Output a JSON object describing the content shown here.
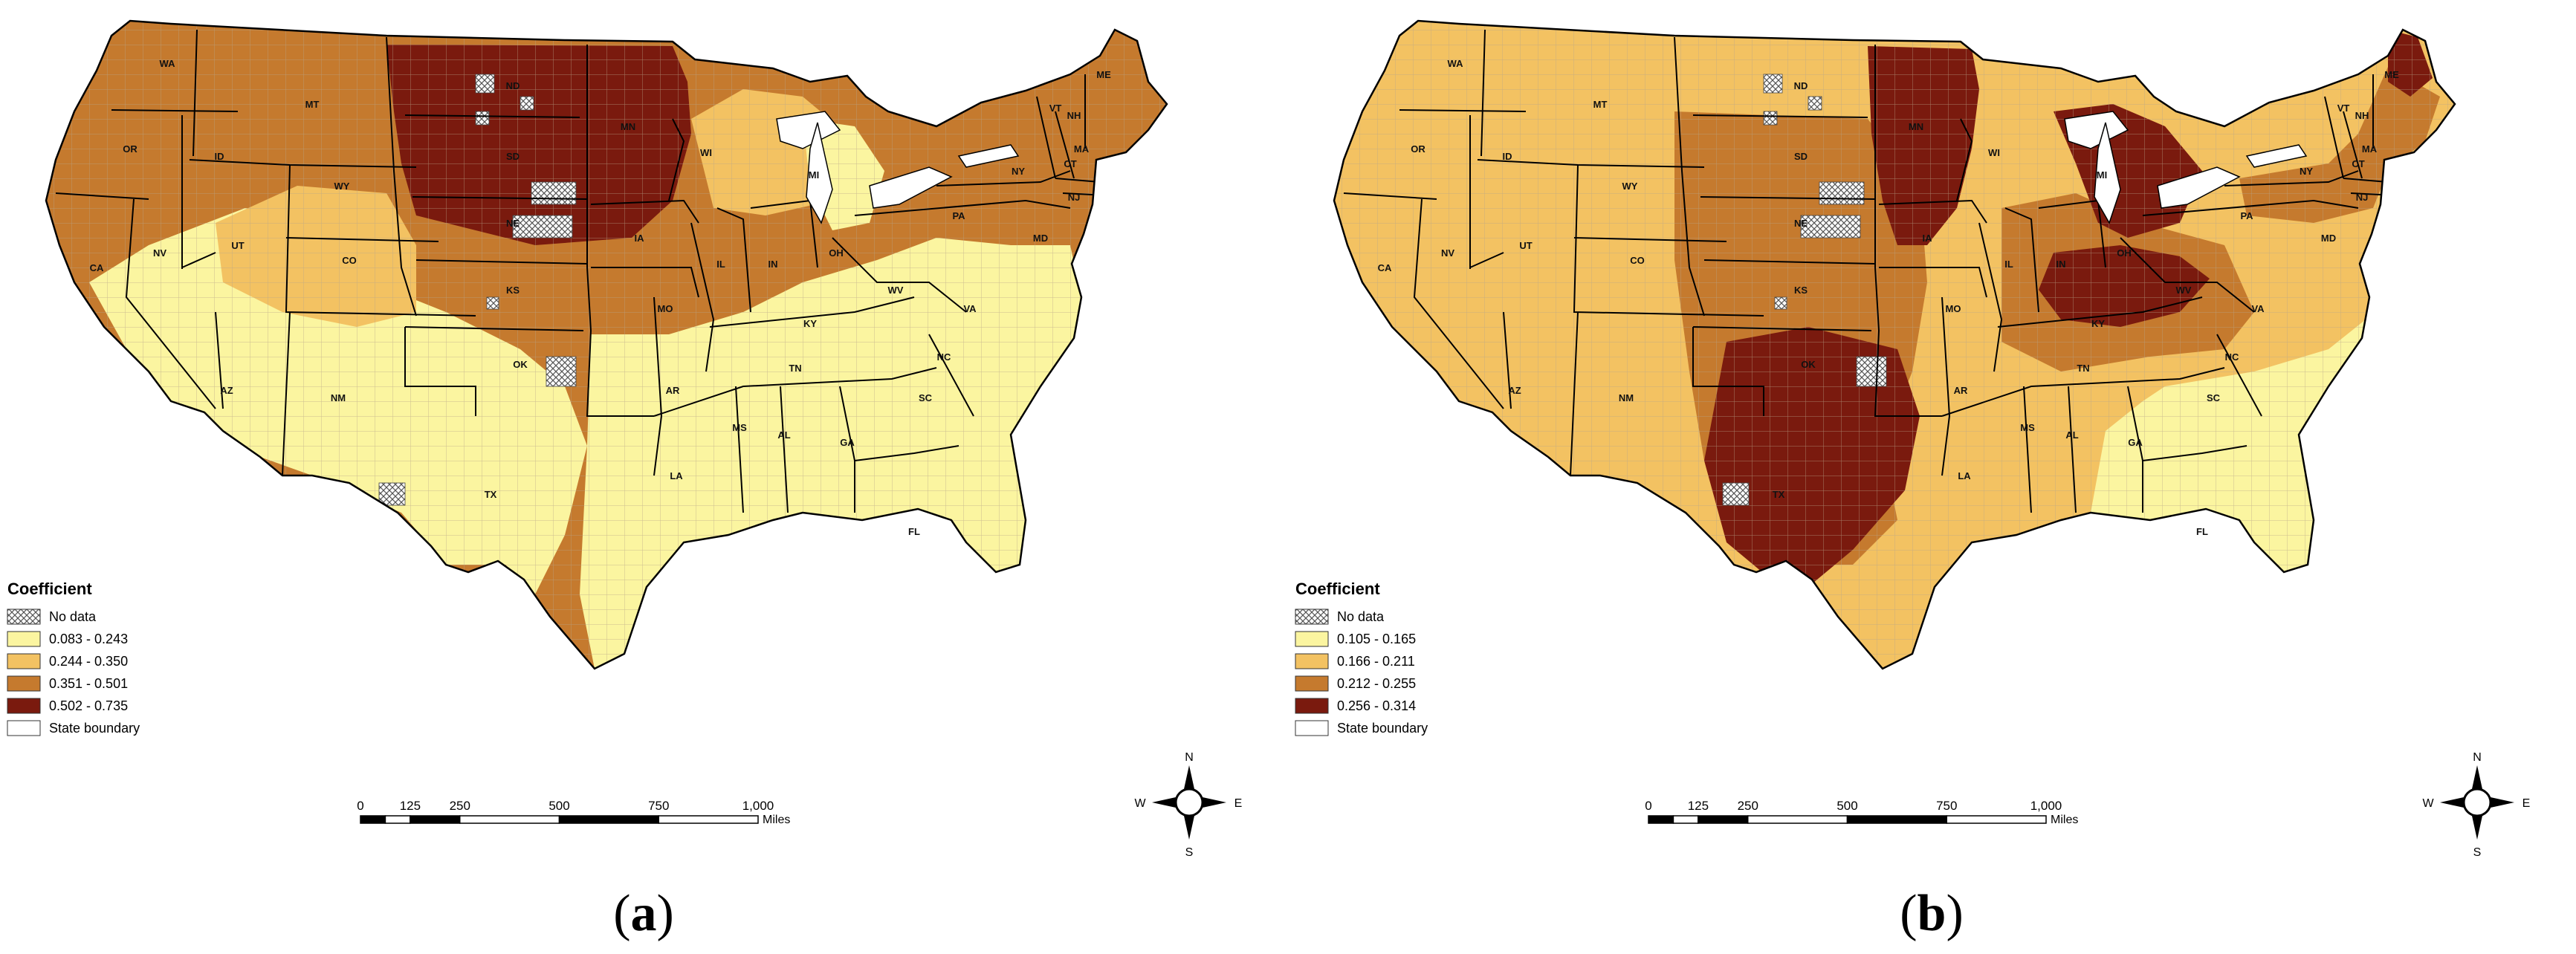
{
  "colors": {
    "nodata_fill": "#ffffff",
    "state_line": "#000000",
    "county_line": "#b8a58a"
  },
  "panels": [
    {
      "id": "a",
      "sublabel": "a",
      "legend": {
        "title": "Coefficient",
        "no_data_label": "No data",
        "state_boundary_label": "State boundary",
        "classes": [
          {
            "label": "0.083 - 0.243",
            "color": "#fbf5a0"
          },
          {
            "label": "0.244 - 0.350",
            "color": "#f3c262"
          },
          {
            "label": "0.351 - 0.501",
            "color": "#c57a2e"
          },
          {
            "label": "0.502 - 0.735",
            "color": "#7a1a0e"
          }
        ]
      },
      "base_class": 2,
      "zones": [
        {
          "name": "northern-plains-high",
          "class": 3
        },
        {
          "name": "southwest-low",
          "class": 0
        },
        {
          "name": "southeast-low",
          "class": 0
        },
        {
          "name": "mountain-moderate",
          "class": 1
        },
        {
          "name": "great-lakes-moderate",
          "class": 1
        },
        {
          "name": "michigan-low",
          "class": 0
        }
      ],
      "scale": {
        "ticks": [
          "0",
          "125",
          "250",
          "500",
          "750",
          "1,000"
        ],
        "unit": "Miles"
      },
      "compass": {
        "n": "N",
        "s": "S",
        "e": "E",
        "w": "W"
      },
      "states": [
        {
          "abbr": "WA"
        },
        {
          "abbr": "OR"
        },
        {
          "abbr": "CA"
        },
        {
          "abbr": "ID"
        },
        {
          "abbr": "NV"
        },
        {
          "abbr": "MT"
        },
        {
          "abbr": "WY"
        },
        {
          "abbr": "UT"
        },
        {
          "abbr": "AZ"
        },
        {
          "abbr": "CO"
        },
        {
          "abbr": "NM"
        },
        {
          "abbr": "ND"
        },
        {
          "abbr": "SD"
        },
        {
          "abbr": "NE"
        },
        {
          "abbr": "KS"
        },
        {
          "abbr": "OK"
        },
        {
          "abbr": "TX"
        },
        {
          "abbr": "MN"
        },
        {
          "abbr": "IA"
        },
        {
          "abbr": "MO"
        },
        {
          "abbr": "AR"
        },
        {
          "abbr": "LA"
        },
        {
          "abbr": "WI"
        },
        {
          "abbr": "IL"
        },
        {
          "abbr": "MI"
        },
        {
          "abbr": "IN"
        },
        {
          "abbr": "OH"
        },
        {
          "abbr": "KY"
        },
        {
          "abbr": "TN"
        },
        {
          "abbr": "MS"
        },
        {
          "abbr": "AL"
        },
        {
          "abbr": "GA"
        },
        {
          "abbr": "FL"
        },
        {
          "abbr": "SC"
        },
        {
          "abbr": "NC"
        },
        {
          "abbr": "VA"
        },
        {
          "abbr": "WV"
        },
        {
          "abbr": "PA"
        },
        {
          "abbr": "NY"
        },
        {
          "abbr": "VT"
        },
        {
          "abbr": "NH"
        },
        {
          "abbr": "ME"
        },
        {
          "abbr": "MA"
        },
        {
          "abbr": "CT"
        },
        {
          "abbr": "NJ"
        },
        {
          "abbr": "MD"
        }
      ]
    },
    {
      "id": "b",
      "sublabel": "b",
      "legend": {
        "title": "Coefficient",
        "no_data_label": "No data",
        "state_boundary_label": "State boundary",
        "classes": [
          {
            "label": "0.105 - 0.165",
            "color": "#fbf5a0"
          },
          {
            "label": "0.166 - 0.211",
            "color": "#f3c262"
          },
          {
            "label": "0.212 - 0.255",
            "color": "#c57a2e"
          },
          {
            "label": "0.256 - 0.314",
            "color": "#7a1a0e"
          }
        ]
      },
      "base_class": 1,
      "zones": [
        {
          "name": "northeast-moderate",
          "class": 2
        },
        {
          "name": "southeast-low",
          "class": 0
        },
        {
          "name": "plains-moderate",
          "class": 2
        },
        {
          "name": "ohio-valley-moderate",
          "class": 2
        },
        {
          "name": "dakotas-high",
          "class": 3
        },
        {
          "name": "southern-plains-high",
          "class": 3
        },
        {
          "name": "michigan-high",
          "class": 3
        },
        {
          "name": "kentucky-high",
          "class": 3
        },
        {
          "name": "maine-high",
          "class": 3
        }
      ],
      "scale": {
        "ticks": [
          "0",
          "125",
          "250",
          "500",
          "750",
          "1,000"
        ],
        "unit": "Miles"
      },
      "compass": {
        "n": "N",
        "s": "S",
        "e": "E",
        "w": "W"
      },
      "states": [
        {
          "abbr": "WA"
        },
        {
          "abbr": "OR"
        },
        {
          "abbr": "CA"
        },
        {
          "abbr": "ID"
        },
        {
          "abbr": "NV"
        },
        {
          "abbr": "MT"
        },
        {
          "abbr": "WY"
        },
        {
          "abbr": "UT"
        },
        {
          "abbr": "AZ"
        },
        {
          "abbr": "CO"
        },
        {
          "abbr": "NM"
        },
        {
          "abbr": "ND"
        },
        {
          "abbr": "SD"
        },
        {
          "abbr": "NE"
        },
        {
          "abbr": "KS"
        },
        {
          "abbr": "OK"
        },
        {
          "abbr": "TX"
        },
        {
          "abbr": "MN"
        },
        {
          "abbr": "IA"
        },
        {
          "abbr": "MO"
        },
        {
          "abbr": "AR"
        },
        {
          "abbr": "LA"
        },
        {
          "abbr": "WI"
        },
        {
          "abbr": "IL"
        },
        {
          "abbr": "MI"
        },
        {
          "abbr": "IN"
        },
        {
          "abbr": "OH"
        },
        {
          "abbr": "KY"
        },
        {
          "abbr": "TN"
        },
        {
          "abbr": "MS"
        },
        {
          "abbr": "AL"
        },
        {
          "abbr": "GA"
        },
        {
          "abbr": "FL"
        },
        {
          "abbr": "SC"
        },
        {
          "abbr": "NC"
        },
        {
          "abbr": "VA"
        },
        {
          "abbr": "WV"
        },
        {
          "abbr": "PA"
        },
        {
          "abbr": "NY"
        },
        {
          "abbr": "VT"
        },
        {
          "abbr": "NH"
        },
        {
          "abbr": "ME"
        },
        {
          "abbr": "MA"
        },
        {
          "abbr": "CT"
        },
        {
          "abbr": "NJ"
        },
        {
          "abbr": "MD"
        }
      ]
    }
  ]
}
